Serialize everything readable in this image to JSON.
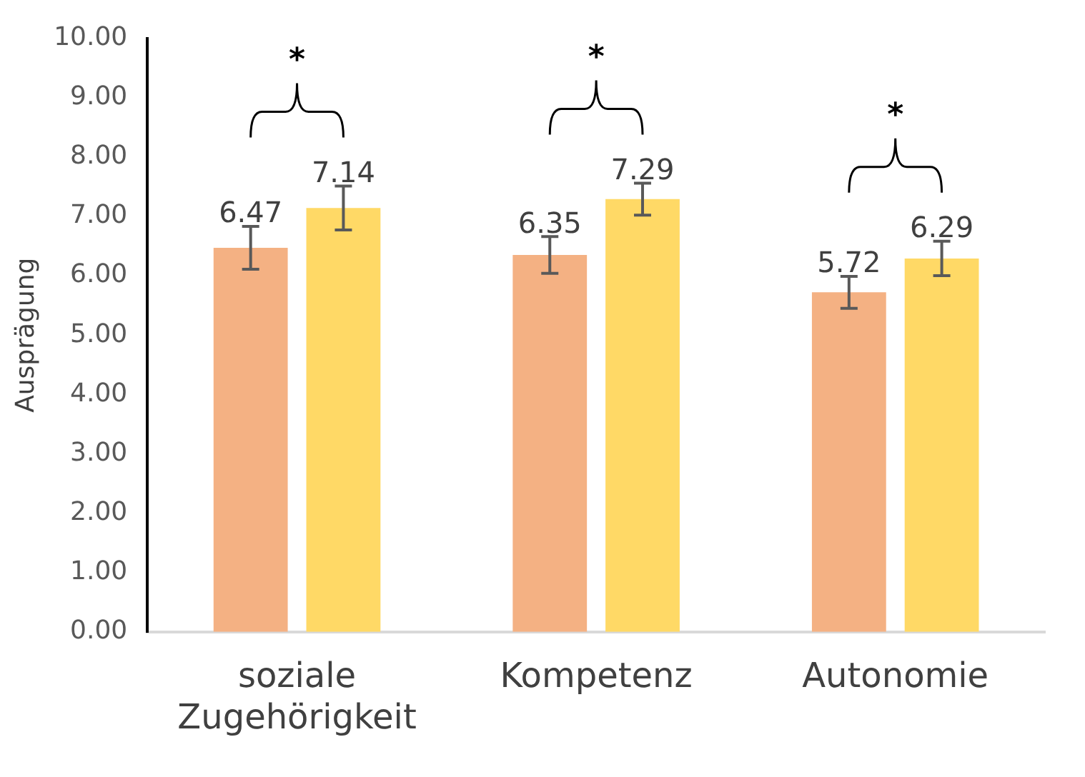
{
  "chart_data": {
    "type": "bar",
    "ylabel": "Ausprägung",
    "categories": [
      "soziale Zugehörigkeit",
      "Kompetenz",
      "Autonomie"
    ],
    "series": [
      {
        "color": "#f4b183",
        "values": [
          6.47,
          6.35,
          5.72
        ],
        "errors": [
          0.36,
          0.31,
          0.27
        ]
      },
      {
        "color": "#ffd966",
        "values": [
          7.14,
          7.29,
          6.29
        ],
        "errors": [
          0.37,
          0.27,
          0.29
        ]
      }
    ],
    "ylim": [
      0,
      10
    ],
    "yticks": [
      {
        "value": 0,
        "label": "0.00"
      },
      {
        "value": 1,
        "label": "1.00"
      },
      {
        "value": 2,
        "label": "2.00"
      },
      {
        "value": 3,
        "label": "3.00"
      },
      {
        "value": 4,
        "label": "4.00"
      },
      {
        "value": 5,
        "label": "5.00"
      },
      {
        "value": 6,
        "label": "6.00"
      },
      {
        "value": 7,
        "label": "7.00"
      },
      {
        "value": 8,
        "label": "8.00"
      },
      {
        "value": 9,
        "label": "9.00"
      },
      {
        "value": 10,
        "label": "10.00"
      }
    ],
    "data_labels": true,
    "grid": false,
    "legend": false,
    "annotations": [
      "*",
      "*",
      "*"
    ]
  }
}
